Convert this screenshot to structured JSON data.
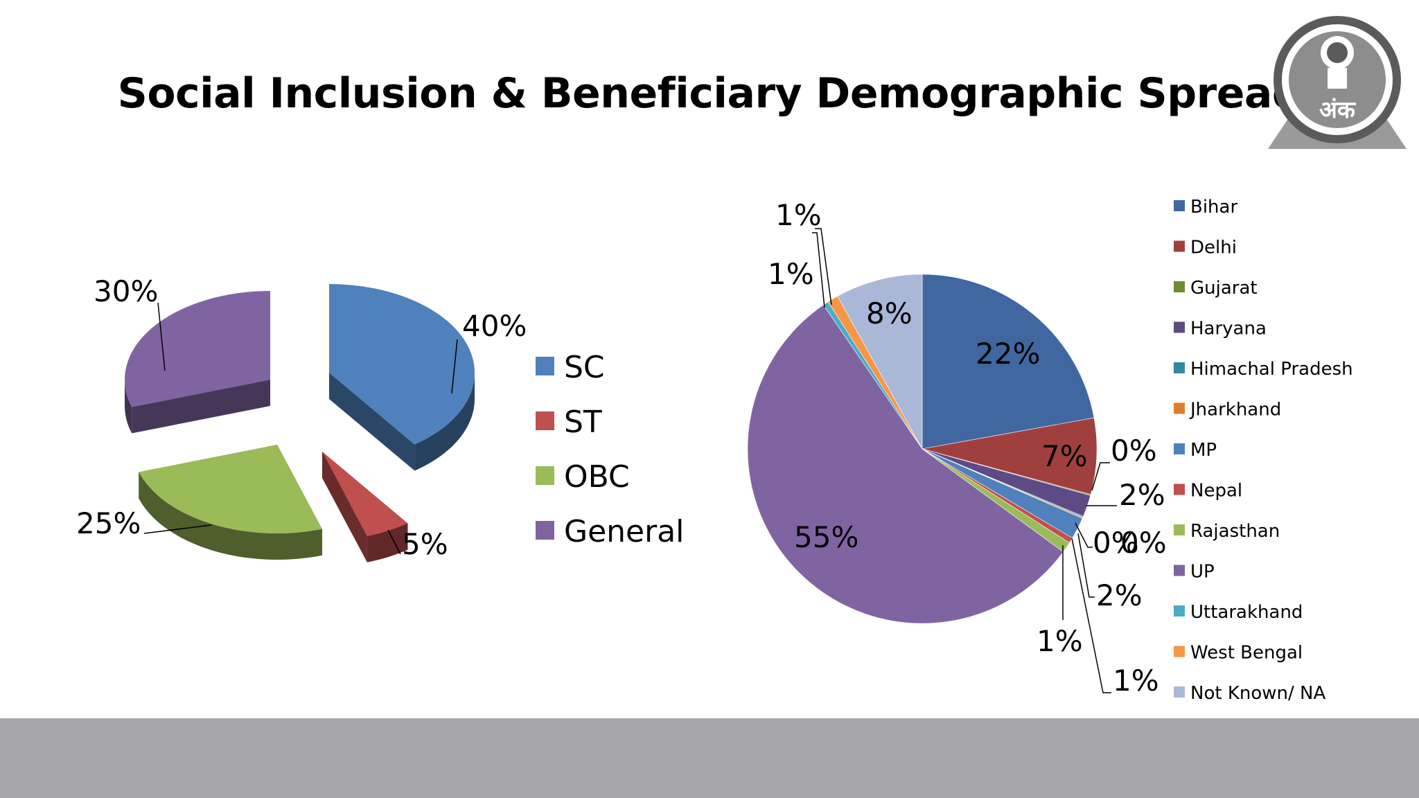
{
  "slide": {
    "title": "Social Inclusion & Beneficiary Demographic Spread",
    "footer_color": "#a7a6a9",
    "logo_text": "अंक"
  },
  "chart_data": [
    {
      "type": "pie",
      "style": "3d-exploded",
      "categories": [
        "SC",
        "ST",
        "OBC",
        "General"
      ],
      "values": [
        40,
        5,
        25,
        30
      ],
      "labels": [
        "40%",
        "5%",
        "25%",
        "30%"
      ],
      "colors": [
        "#4f81bd",
        "#c0504d",
        "#9bbb59",
        "#8064a2"
      ],
      "legend_position": "right"
    },
    {
      "type": "pie",
      "categories": [
        "Bihar",
        "Delhi",
        "Gujarat",
        "Haryana",
        "Himachal Pradesh",
        "Jharkhand",
        "MP",
        "Nepal",
        "Rajasthan",
        "UP",
        "Uttarakhand",
        "West Bengal",
        "Not Known/ NA"
      ],
      "values": [
        22,
        7,
        0.1,
        2,
        0.1,
        0.1,
        2,
        0.5,
        1,
        55,
        0.5,
        1,
        8
      ],
      "labels": [
        "22%",
        "7%",
        "0%",
        "2%",
        "0%",
        "0%",
        "2%",
        "1%",
        "1%",
        "55%",
        "1%",
        "1%",
        "8%"
      ],
      "colors": [
        "#4067a0",
        "#a0403e",
        "#6f8b33",
        "#5e4a85",
        "#2f8aa0",
        "#e07d2e",
        "#4f81bd",
        "#c0504d",
        "#9bbb59",
        "#8064a2",
        "#4bacc6",
        "#f79646",
        "#aab8d8"
      ],
      "legend_position": "right"
    }
  ]
}
